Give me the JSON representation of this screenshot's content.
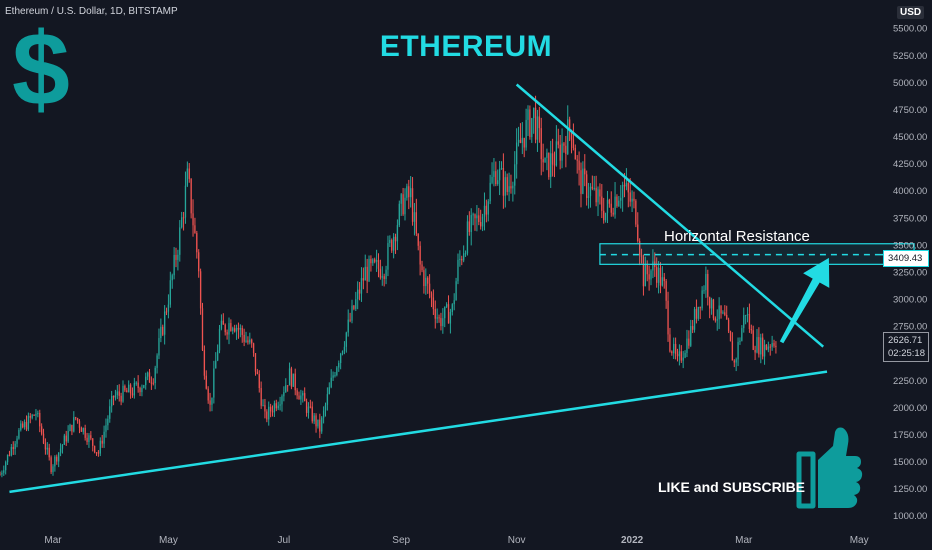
{
  "header": {
    "ticker_label": "Ethereum / U.S. Dollar, 1D, BITSTAMP",
    "currency_badge": "USD"
  },
  "overlays": {
    "title": "ETHEREUM",
    "dollar_symbol": "$",
    "resistance_label": "Horizontal Resistance",
    "cta_label": "LIKE and SUBSCRIBE",
    "thumb_icon": "thumbs-up-icon",
    "accent_color": "#22dbe3",
    "dark_accent_color": "#0e9c9c"
  },
  "price_scale": {
    "resistance_price": "3409.43",
    "current_price": "2626.71",
    "countdown": "02:25:18"
  },
  "chart_data": {
    "type": "candlestick",
    "title": "ETHEREUM",
    "series_name": "Ethereum / U.S. Dollar, 1D, BITSTAMP",
    "up_color": "#26a69a",
    "down_color": "#ef5350",
    "y_axis": {
      "ticks": [
        1000,
        1250,
        1500,
        1750,
        2000,
        2250,
        2500,
        2750,
        3000,
        3250,
        3500,
        3750,
        4000,
        4250,
        4500,
        4750,
        5000,
        5250,
        5500
      ],
      "tick_labels": [
        "1000.00",
        "1250.00",
        "1500.00",
        "1750.00",
        "2000.00",
        "2250.00",
        "2500.00",
        "2750.00",
        "3000.00",
        "3250.00",
        "3500.00",
        "3750.00",
        "4000.00",
        "4250.00",
        "4500.00",
        "4750.00",
        "5000.00",
        "5250.00",
        "5500.00"
      ],
      "ylim": [
        960,
        5760
      ]
    },
    "x_axis": {
      "ticks": [
        "2021-03-01",
        "2021-05-01",
        "2021-07-01",
        "2021-09-01",
        "2021-11-01",
        "2022-01-01",
        "2022-03-01",
        "2022-05-01"
      ],
      "tick_labels": [
        "Mar",
        "May",
        "Jul",
        "Sep",
        "Nov",
        "2022",
        "Mar",
        "May"
      ],
      "xlim": [
        "2021-02-01",
        "2022-05-12"
      ]
    },
    "close_path": [
      [
        "2021-02-01",
        1380
      ],
      [
        "2021-02-10",
        1750
      ],
      [
        "2021-02-20",
        1950
      ],
      [
        "2021-02-28",
        1450
      ],
      [
        "2021-03-13",
        1900
      ],
      [
        "2021-03-25",
        1580
      ],
      [
        "2021-04-02",
        2100
      ],
      [
        "2021-04-12",
        2150
      ],
      [
        "2021-04-23",
        2300
      ],
      [
        "2021-05-03",
        3200
      ],
      [
        "2021-05-07",
        3600
      ],
      [
        "2021-05-11",
        4100
      ],
      [
        "2021-05-12",
        4000
      ],
      [
        "2021-05-17",
        3300
      ],
      [
        "2021-05-19",
        2500
      ],
      [
        "2021-05-23",
        2000
      ],
      [
        "2021-05-28",
        2700
      ],
      [
        "2021-06-04",
        2800
      ],
      [
        "2021-06-14",
        2550
      ],
      [
        "2021-06-21",
        1900
      ],
      [
        "2021-06-29",
        2100
      ],
      [
        "2021-07-04",
        2300
      ],
      [
        "2021-07-13",
        2000
      ],
      [
        "2021-07-20",
        1800
      ],
      [
        "2021-07-27",
        2300
      ],
      [
        "2021-08-05",
        2800
      ],
      [
        "2021-08-13",
        3250
      ],
      [
        "2021-08-23",
        3300
      ],
      [
        "2021-09-02",
        3900
      ],
      [
        "2021-09-06",
        3950
      ],
      [
        "2021-09-11",
        3300
      ],
      [
        "2021-09-21",
        2800
      ],
      [
        "2021-09-28",
        2900
      ],
      [
        "2021-10-01",
        3300
      ],
      [
        "2021-10-06",
        3600
      ],
      [
        "2021-10-14",
        3800
      ],
      [
        "2021-10-21",
        4200
      ],
      [
        "2021-10-27",
        4000
      ],
      [
        "2021-11-04",
        4500
      ],
      [
        "2021-11-10",
        4700
      ],
      [
        "2021-11-16",
        4200
      ],
      [
        "2021-11-23",
        4350
      ],
      [
        "2021-11-30",
        4600
      ],
      [
        "2021-12-04",
        4100
      ],
      [
        "2021-12-10",
        4000
      ],
      [
        "2021-12-18",
        3800
      ],
      [
        "2021-12-27",
        4050
      ],
      [
        "2022-01-03",
        3800
      ],
      [
        "2022-01-07",
        3200
      ],
      [
        "2022-01-13",
        3300
      ],
      [
        "2022-01-18",
        3100
      ],
      [
        "2022-01-21",
        2600
      ],
      [
        "2022-01-25",
        2400
      ],
      [
        "2022-02-01",
        2700
      ],
      [
        "2022-02-09",
        3200
      ],
      [
        "2022-02-12",
        2900
      ],
      [
        "2022-02-19",
        2800
      ],
      [
        "2022-02-24",
        2400
      ],
      [
        "2022-03-02",
        2900
      ],
      [
        "2022-03-06",
        2600
      ],
      [
        "2022-03-12",
        2550
      ],
      [
        "2022-03-15",
        2600
      ],
      [
        "2022-03-18",
        2626.71
      ]
    ],
    "drawings": [
      {
        "type": "trendline",
        "name": "support",
        "from": [
          "2021-02-06",
          1220
        ],
        "to": [
          "2022-04-14",
          2330
        ]
      },
      {
        "type": "trendline",
        "name": "descending-resistance",
        "from": [
          "2021-11-01",
          4980
        ],
        "to": [
          "2022-04-12",
          2560
        ]
      },
      {
        "type": "zone",
        "name": "horizontal-resistance",
        "from": "2021-12-15",
        "to": "2022-05-30",
        "low": 3320,
        "high": 3510
      },
      {
        "type": "hline",
        "name": "resistance-level",
        "value": 3409.43
      },
      {
        "type": "arrow",
        "name": "breakout-arrow",
        "from": [
          "2022-03-21",
          2600
        ],
        "to": [
          "2022-04-15",
          3380
        ]
      }
    ]
  }
}
